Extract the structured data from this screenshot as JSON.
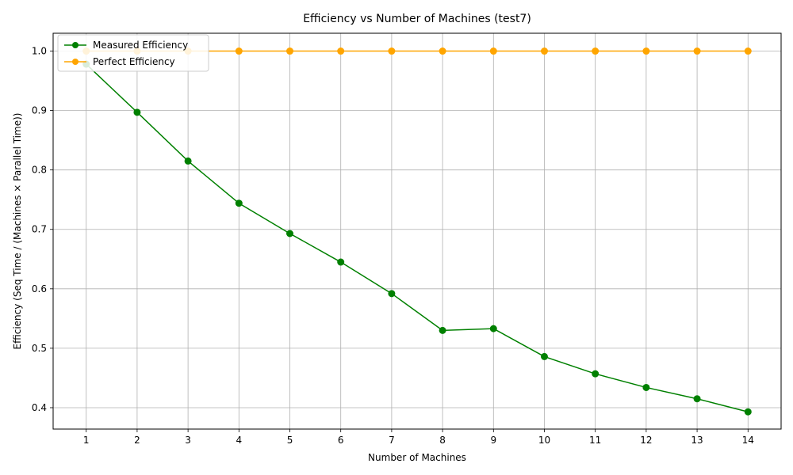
{
  "chart_data": {
    "type": "line",
    "title": "Efficiency vs Number of Machines (test7)",
    "xlabel": "Number of Machines",
    "ylabel": "Efficiency (Seq Time / (Machines × Parallel Time))",
    "x": [
      1,
      2,
      3,
      4,
      5,
      6,
      7,
      8,
      9,
      10,
      11,
      12,
      13,
      14
    ],
    "xlim": [
      0.35,
      14.65
    ],
    "ylim": [
      0.364,
      1.03
    ],
    "x_ticks": [
      1,
      2,
      3,
      4,
      5,
      6,
      7,
      8,
      9,
      10,
      11,
      12,
      13,
      14
    ],
    "x_tick_labels": [
      "1",
      "2",
      "3",
      "4",
      "5",
      "6",
      "7",
      "8",
      "9",
      "10",
      "11",
      "12",
      "13",
      "14"
    ],
    "y_ticks": [
      0.4,
      0.5,
      0.6,
      0.7,
      0.8,
      0.9,
      1.0
    ],
    "y_tick_labels": [
      "0.4",
      "0.5",
      "0.6",
      "0.7",
      "0.8",
      "0.9",
      "1.0"
    ],
    "grid": true,
    "legend_position": "top-left",
    "series": [
      {
        "name": "Measured Efficiency",
        "color": "#008000",
        "marker": "circle",
        "values": [
          0.978,
          0.897,
          0.815,
          0.744,
          0.693,
          0.645,
          0.592,
          0.53,
          0.533,
          0.486,
          0.457,
          0.434,
          0.415,
          0.393
        ]
      },
      {
        "name": "Perfect Efficiency",
        "color": "#ffa500",
        "marker": "circle",
        "values": [
          1.0,
          1.0,
          1.0,
          1.0,
          1.0,
          1.0,
          1.0,
          1.0,
          1.0,
          1.0,
          1.0,
          1.0,
          1.0,
          1.0
        ]
      }
    ]
  }
}
